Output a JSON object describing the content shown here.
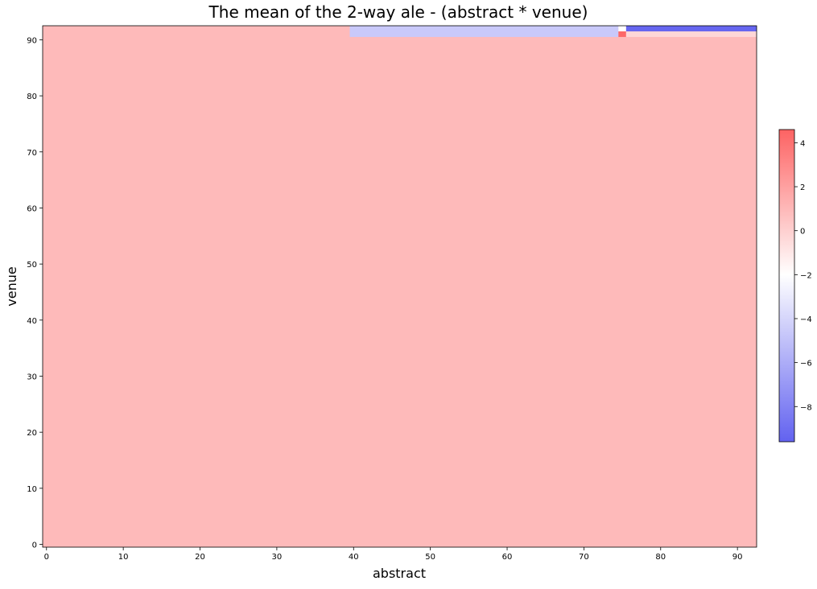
{
  "chart_data": {
    "type": "heatmap",
    "title": "The mean of the 2-way ale - (abstract * venue)",
    "xlabel": "abstract",
    "ylabel": "venue",
    "xlim": [
      -0.5,
      92.5
    ],
    "ylim": [
      -0.5,
      92.5
    ],
    "x_ticks": [
      0,
      10,
      20,
      30,
      40,
      50,
      60,
      70,
      80,
      90
    ],
    "y_ticks": [
      0,
      10,
      20,
      30,
      40,
      50,
      60,
      70,
      80,
      90
    ],
    "colorbar": {
      "range": [
        -9.6,
        4.6
      ],
      "center": -2,
      "ticks": [
        4,
        2,
        0,
        -2,
        -4,
        -6,
        -8
      ],
      "tick_labels": [
        "4",
        "2",
        "0",
        "−2",
        "−4",
        "−6",
        "−8"
      ],
      "colors": {
        "low": "#6262f0",
        "mid": "#ffffff",
        "high": "#fd6363"
      }
    },
    "background_value": 0.9,
    "cells": [
      {
        "x": [
          39.5,
          74.5
        ],
        "y": [
          90.5,
          92.5
        ],
        "value": -4.6
      },
      {
        "x": [
          74.5,
          75.5
        ],
        "y": [
          90.5,
          91.5
        ],
        "value": 4.4
      },
      {
        "x": [
          74.5,
          75.5
        ],
        "y": [
          91.5,
          92.5
        ],
        "value": -2.0
      },
      {
        "x": [
          75.5,
          92.5
        ],
        "y": [
          90.5,
          91.5
        ],
        "value": -0.3
      },
      {
        "x": [
          75.5,
          92.5
        ],
        "y": [
          91.5,
          92.5
        ],
        "value": -9.4
      }
    ]
  }
}
